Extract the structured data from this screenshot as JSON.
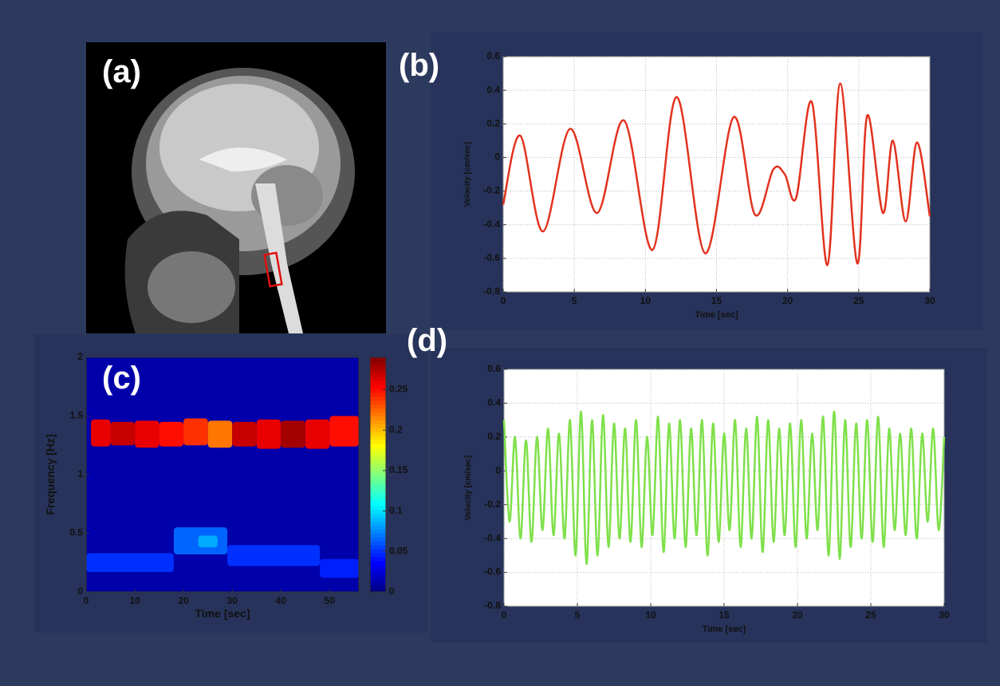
{
  "image_panel": {
    "label": "(a)"
  },
  "chart_data": [
    {
      "type": "line",
      "label": "(b)",
      "xlabel": "Time [sec]",
      "ylabel": "Velocity [cm/sec]",
      "color": "#e2321e",
      "grid": true,
      "x": [
        0,
        1.2,
        2.8,
        4.7,
        6.6,
        8.5,
        10.5,
        12.2,
        14.2,
        16.2,
        17.7,
        19,
        19.8,
        20.6,
        21.7,
        22.8,
        23.7,
        24.9,
        25.6,
        26.7,
        27.4,
        28.3,
        29.1,
        30
      ],
      "values": [
        -0.28,
        0.13,
        -0.44,
        0.17,
        -0.33,
        0.22,
        -0.55,
        0.36,
        -0.57,
        0.24,
        -0.34,
        -0.07,
        -0.1,
        -0.24,
        0.33,
        -0.64,
        0.44,
        -0.63,
        0.25,
        -0.33,
        0.1,
        -0.38,
        0.09,
        -0.35
      ],
      "xlim": [
        0,
        30
      ],
      "ylim": [
        -0.8,
        0.6
      ],
      "xticks": [
        0,
        5,
        10,
        15,
        20,
        25,
        30
      ],
      "yticks": [
        -0.8,
        -0.6,
        -0.4,
        -0.2,
        0,
        0.2,
        0.4,
        0.6
      ]
    },
    {
      "type": "spectrogram",
      "label": "(c)",
      "xlabel": "Time [sec]",
      "ylabel": "Frequency [Hz]",
      "cells": [
        [
          0,
          56,
          0,
          2,
          0.012
        ],
        [
          1,
          5,
          1.24,
          1.47,
          0.26
        ],
        [
          5,
          10,
          1.25,
          1.45,
          0.27
        ],
        [
          10,
          15,
          1.23,
          1.46,
          0.26
        ],
        [
          15,
          20,
          1.24,
          1.45,
          0.25
        ],
        [
          20,
          25,
          1.25,
          1.48,
          0.24
        ],
        [
          25,
          30,
          1.23,
          1.46,
          0.22
        ],
        [
          30,
          35,
          1.24,
          1.45,
          0.27
        ],
        [
          35,
          40,
          1.22,
          1.47,
          0.26
        ],
        [
          40,
          45,
          1.23,
          1.46,
          0.28
        ],
        [
          45,
          50,
          1.22,
          1.47,
          0.26
        ],
        [
          50,
          56,
          1.24,
          1.5,
          0.25
        ],
        [
          0,
          18,
          0.17,
          0.33,
          0.05
        ],
        [
          18,
          29,
          0.32,
          0.55,
          0.065
        ],
        [
          23,
          27,
          0.38,
          0.48,
          0.085
        ],
        [
          29,
          48,
          0.22,
          0.4,
          0.05
        ],
        [
          48,
          56,
          0.12,
          0.28,
          0.045
        ]
      ],
      "clim": [
        0,
        0.29
      ],
      "cticks": [
        0,
        0.05,
        0.1,
        0.15,
        0.2,
        0.25
      ],
      "xlim": [
        0,
        56
      ],
      "ylim": [
        0,
        2
      ],
      "xticks": [
        0,
        10,
        20,
        30,
        40,
        50
      ],
      "yticks": [
        0,
        0.5,
        1,
        1.5,
        2
      ]
    },
    {
      "type": "line",
      "label": "(d)",
      "xlabel": "Time [sec]",
      "ylabel": "Velocity [cm/sec]",
      "color": "#7fe04a",
      "grid": true,
      "x": [
        0,
        0.375,
        0.75,
        1.125,
        1.5,
        1.875,
        2.25,
        2.625,
        3,
        3.375,
        3.75,
        4.125,
        4.5,
        4.875,
        5.25,
        5.625,
        6,
        6.375,
        6.75,
        7.125,
        7.5,
        7.875,
        8.25,
        8.625,
        9,
        9.375,
        9.75,
        10.125,
        10.5,
        10.875,
        11.25,
        11.625,
        12,
        12.375,
        12.75,
        13.125,
        13.5,
        13.875,
        14.25,
        14.625,
        15,
        15.375,
        15.75,
        16.125,
        16.5,
        16.875,
        17.25,
        17.625,
        18,
        18.375,
        18.75,
        19.125,
        19.5,
        19.875,
        20.25,
        20.625,
        21,
        21.375,
        21.75,
        22.125,
        22.5,
        22.875,
        23.25,
        23.625,
        24,
        24.375,
        24.75,
        25.125,
        25.5,
        25.875,
        26.25,
        26.625,
        27,
        27.375,
        27.75,
        28.125,
        28.5,
        28.875,
        29.25,
        29.625,
        30
      ],
      "values": [
        0.3,
        -0.3,
        0.2,
        -0.4,
        0.18,
        -0.42,
        0.2,
        -0.35,
        0.25,
        -0.38,
        0.22,
        -0.4,
        0.3,
        -0.5,
        0.35,
        -0.55,
        0.3,
        -0.5,
        0.33,
        -0.45,
        0.28,
        -0.4,
        0.25,
        -0.42,
        0.3,
        -0.45,
        0.2,
        -0.38,
        0.32,
        -0.48,
        0.28,
        -0.4,
        0.3,
        -0.45,
        0.25,
        -0.38,
        0.3,
        -0.5,
        0.28,
        -0.42,
        0.22,
        -0.35,
        0.3,
        -0.45,
        0.25,
        -0.4,
        0.32,
        -0.48,
        0.3,
        -0.42,
        0.25,
        -0.38,
        0.28,
        -0.45,
        0.3,
        -0.4,
        0.22,
        -0.35,
        0.32,
        -0.5,
        0.35,
        -0.52,
        0.3,
        -0.45,
        0.28,
        -0.4,
        0.3,
        -0.42,
        0.32,
        -0.45,
        0.25,
        -0.35,
        0.22,
        -0.38,
        0.25,
        -0.4,
        0.22,
        -0.3,
        0.25,
        -0.35,
        0.2
      ],
      "xlim": [
        0,
        30
      ],
      "ylim": [
        -0.8,
        0.6
      ],
      "xticks": [
        0,
        5,
        10,
        15,
        20,
        25,
        30
      ],
      "yticks": [
        -0.8,
        -0.6,
        -0.4,
        -0.2,
        0,
        0.2,
        0.4,
        0.6
      ]
    }
  ]
}
